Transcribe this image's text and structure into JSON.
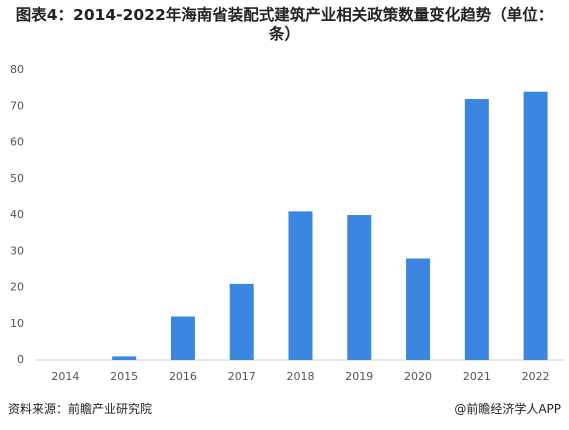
{
  "chart_data": {
    "type": "bar",
    "title": "图表4：2014-2022年海南省装配式建筑产业相关政策数量变化趋势（单位：条）",
    "categories": [
      "2014",
      "2015",
      "2016",
      "2017",
      "2018",
      "2019",
      "2020",
      "2021",
      "2022"
    ],
    "values": [
      0,
      1,
      12,
      21,
      41,
      40,
      28,
      72,
      74
    ],
    "color": "#3a86e0",
    "ylim": [
      0,
      80
    ],
    "yticks": [
      0,
      10,
      20,
      30,
      40,
      50,
      60,
      70,
      80
    ],
    "grid": false,
    "source": "资料来源：前瞻产业研究院",
    "watermark": "@前瞻经济学人APP"
  }
}
